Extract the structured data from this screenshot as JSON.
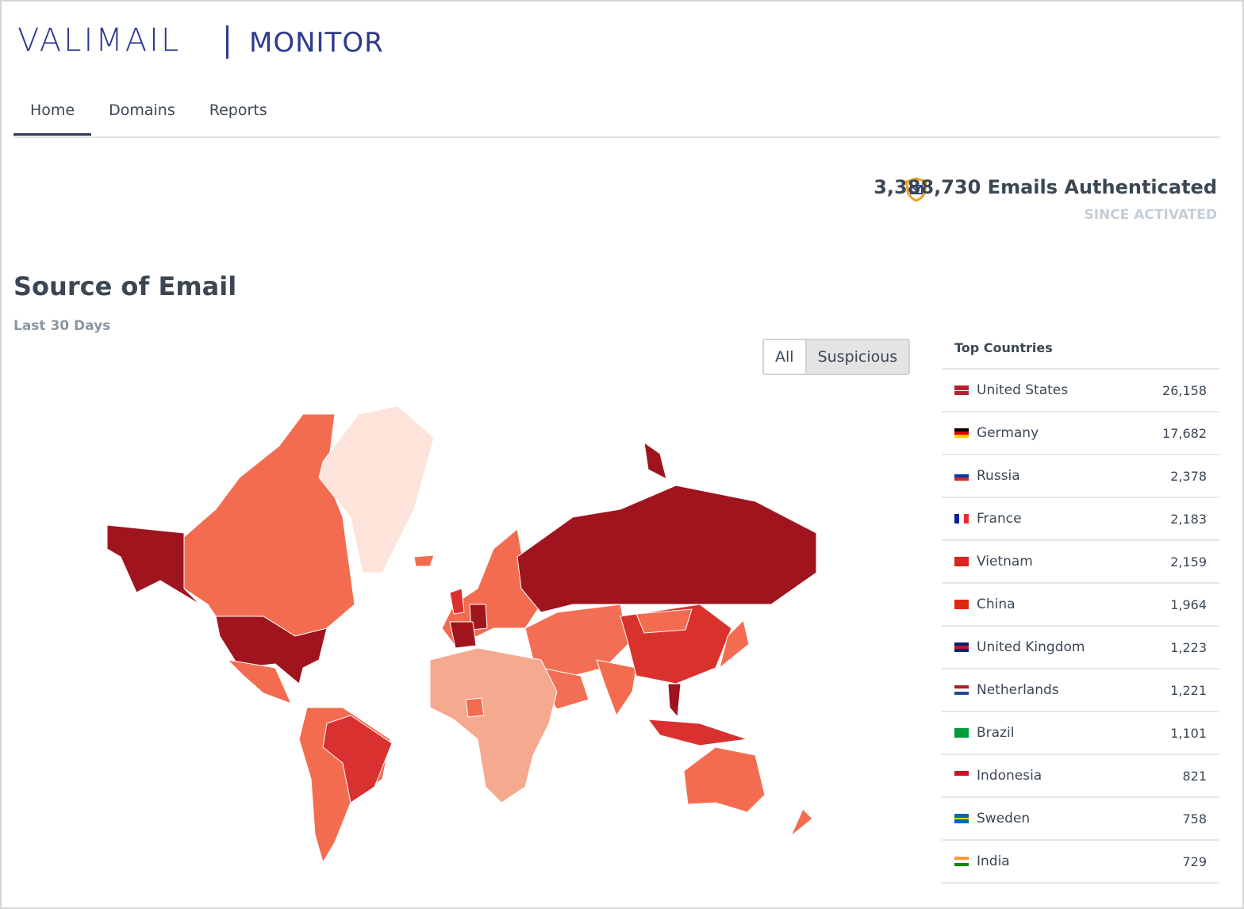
{
  "header": {
    "logo": "VALIMAIL",
    "product": "MONITOR",
    "nav": [
      "Home",
      "Domains",
      "Reports"
    ],
    "active_nav": 0
  },
  "stats": {
    "emails": "3,388,730 Emails Authenticated",
    "since": "SINCE ACTIVATED"
  },
  "section": {
    "title": "Source of Email",
    "subtitle": "Last 30 Days",
    "filters": [
      "All",
      "Suspicious"
    ],
    "selected_filter": 1
  },
  "table": {
    "header": "Top Countries",
    "rows": [
      [
        "United States",
        "26,158"
      ],
      [
        "Germany",
        "17,682"
      ],
      [
        "Russia",
        "2,378"
      ],
      [
        "France",
        "2,183"
      ],
      [
        "Vietnam",
        "2,159"
      ],
      [
        "China",
        "1,964"
      ],
      [
        "United Kingdom",
        "1,223"
      ],
      [
        "Netherlands",
        "1,221"
      ],
      [
        "Brazil",
        "1,101"
      ],
      [
        "Indonesia",
        "821"
      ],
      [
        "Sweden",
        "758"
      ],
      [
        "India",
        "729"
      ]
    ]
  }
}
